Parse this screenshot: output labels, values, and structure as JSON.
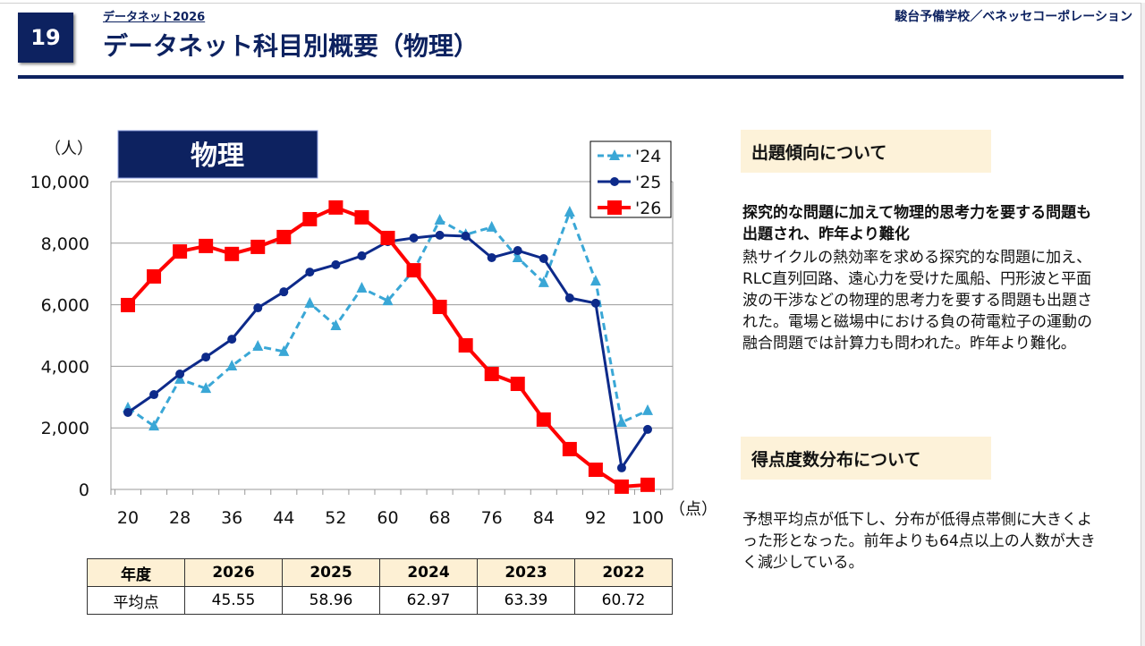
{
  "header": {
    "page_number": "19",
    "subtitle": "データネット2026",
    "title": "データネット科目別概要（物理）",
    "organization": "駿台予備学校／ベネッセコーポレーション"
  },
  "colors": {
    "navy": "#0d2260",
    "s24": "#3aa7d6",
    "s25": "#0d2a8a",
    "s26": "#ff0000"
  },
  "chart_data": {
    "type": "line",
    "title": "物理",
    "ylabel": "（人）",
    "xlabel": "（点）",
    "ylim": [
      0,
      10000
    ],
    "yticks": [
      "0",
      "2,000",
      "4,000",
      "6,000",
      "8,000",
      "10,000"
    ],
    "xticks": [
      "20",
      "28",
      "36",
      "44",
      "52",
      "60",
      "68",
      "76",
      "84",
      "92",
      "100"
    ],
    "x": [
      20,
      24,
      28,
      32,
      36,
      40,
      44,
      48,
      52,
      56,
      60,
      64,
      68,
      72,
      76,
      80,
      84,
      88,
      92,
      96,
      100
    ],
    "grid": true,
    "legend": "top-right",
    "series": [
      {
        "name": "'24",
        "style": "dashed-triangle",
        "values": [
          2650,
          2060,
          3580,
          3280,
          4010,
          4650,
          4480,
          6050,
          5320,
          6540,
          6130,
          7120,
          8750,
          8280,
          8520,
          7530,
          6720,
          9010,
          6770,
          2180,
          2560
        ]
      },
      {
        "name": "'25",
        "style": "solid-circle",
        "values": [
          2500,
          3080,
          3750,
          4300,
          4880,
          5900,
          6420,
          7060,
          7300,
          7590,
          8050,
          8170,
          8260,
          8230,
          7530,
          7760,
          7500,
          6220,
          6050,
          700,
          1950
        ]
      },
      {
        "name": "'26",
        "style": "solid-square",
        "values": [
          5990,
          6920,
          7730,
          7910,
          7650,
          7880,
          8200,
          8780,
          9160,
          8840,
          8170,
          7120,
          5930,
          4680,
          3750,
          3430,
          2270,
          1310,
          640,
          90,
          150
        ]
      }
    ]
  },
  "table": {
    "row_headers": [
      "年度",
      "平均点"
    ],
    "years": [
      "2026",
      "2025",
      "2024",
      "2023",
      "2022"
    ],
    "averages": [
      "45.55",
      "58.96",
      "62.97",
      "63.39",
      "60.72"
    ]
  },
  "trend": {
    "heading": "出題傾向について",
    "lead": "探究的な問題に加えて物理的思考力を要する問題も出題され、昨年より難化",
    "body": "熱サイクルの熱効率を求める探究的な問題に加え、RLC直列回路、遠心力を受けた風船、円形波と平面波の干渉などの物理的思考力を要する問題も出題された。電場と磁場中における負の荷電粒子の運動の融合問題では計算力も問われた。昨年より難化。"
  },
  "distribution": {
    "heading": "得点度数分布について",
    "body": "予想平均点が低下し、分布が低得点帯側に大きくよった形となった。前年よりも64点以上の人数が大きく減少している。"
  }
}
